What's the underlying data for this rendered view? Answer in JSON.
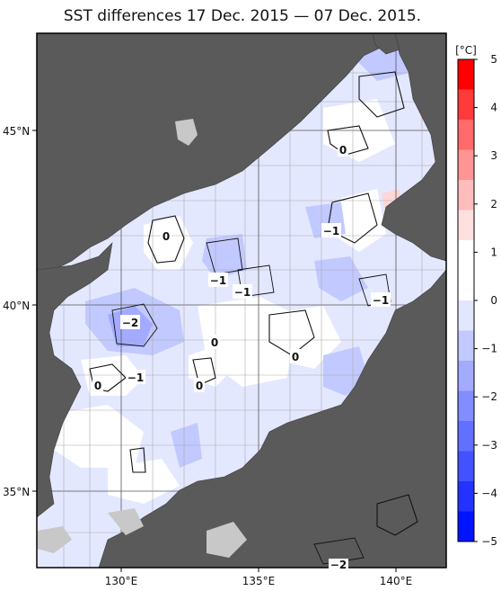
{
  "title": "SST differences 17 Dec. 2015 — 07 Dec. 2015.",
  "colorbar": {
    "unit": "[°C]",
    "labels": [
      "5",
      "4",
      "3",
      "2",
      "1",
      "0",
      "−1",
      "−2",
      "−3",
      "−4",
      "−5"
    ],
    "colors": [
      "#ff0000",
      "#ff3a3a",
      "#ff6a6a",
      "#ff9494",
      "#ffbcbc",
      "#ffe0e0",
      "#ffffff",
      "#ffffff",
      "#e2e6ff",
      "#c2c9ff",
      "#a2abff",
      "#828dff",
      "#6270ff",
      "#4252ff",
      "#2233ff",
      "#0014ff"
    ]
  },
  "axes": {
    "lat_labels": [
      "45°N",
      "40°N",
      "35°N"
    ],
    "lon_labels": [
      "130°E",
      "135°E",
      "140°E"
    ]
  },
  "contour_labels": [
    {
      "text": "0"
    },
    {
      "text": "0"
    },
    {
      "text": "−1"
    },
    {
      "text": "−1"
    },
    {
      "text": "−2"
    },
    {
      "text": "0"
    },
    {
      "text": "0"
    },
    {
      "text": "−1"
    },
    {
      "text": "−1"
    },
    {
      "text": "0"
    },
    {
      "text": "0"
    },
    {
      "text": "−1"
    },
    {
      "text": "−2"
    }
  ]
}
